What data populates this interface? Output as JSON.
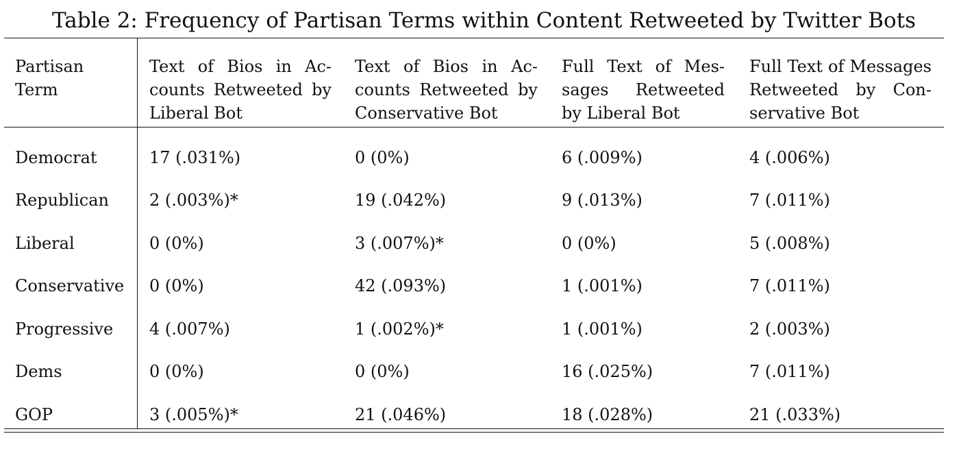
{
  "caption": "Table 2: Frequency of Partisan Terms within Content Retweeted by Twitter Bots",
  "headers": [
    {
      "lines": [
        "Partisan",
        "Term"
      ]
    },
    {
      "lines": [
        "Text of Bios in Ac-",
        "counts Retweeted by",
        "Liberal Bot"
      ]
    },
    {
      "lines": [
        "Text of Bios in Ac-",
        "counts Retweeted by",
        "Conservative Bot"
      ]
    },
    {
      "lines": [
        "Full Text of Mes-",
        "sages Retweeted",
        "by Liberal Bot"
      ]
    },
    {
      "lines": [
        "Full Text of Messages",
        "Retweeted by Con-",
        "servative Bot"
      ]
    }
  ],
  "rows": [
    {
      "term": "Democrat",
      "values": [
        "17 (.031%)",
        "0 (0%)",
        "6 (.009%)",
        "4 (.006%)"
      ]
    },
    {
      "term": "Republican",
      "values": [
        "2 (.003%)*",
        "19 (.042%)",
        "9 (.013%)",
        "7 (.011%)"
      ]
    },
    {
      "term": "Liberal",
      "values": [
        "0 (0%)",
        "3 (.007%)*",
        "0 (0%)",
        "5 (.008%)"
      ]
    },
    {
      "term": "Conservative",
      "values": [
        "0 (0%)",
        "42 (.093%)",
        "1 (.001%)",
        "7 (.011%)"
      ]
    },
    {
      "term": "Progressive",
      "values": [
        "4 (.007%)",
        "1 (.002%)*",
        "1 (.001%)",
        "2 (.003%)"
      ]
    },
    {
      "term": "Dems",
      "values": [
        "0 (0%)",
        "0 (0%)",
        "16 (.025%)",
        "7 (.011%)"
      ]
    },
    {
      "term": "GOP",
      "values": [
        "3 (.005%)*",
        "21 (.046%)",
        "18 (.028%)",
        "21 (.033%)"
      ]
    }
  ]
}
